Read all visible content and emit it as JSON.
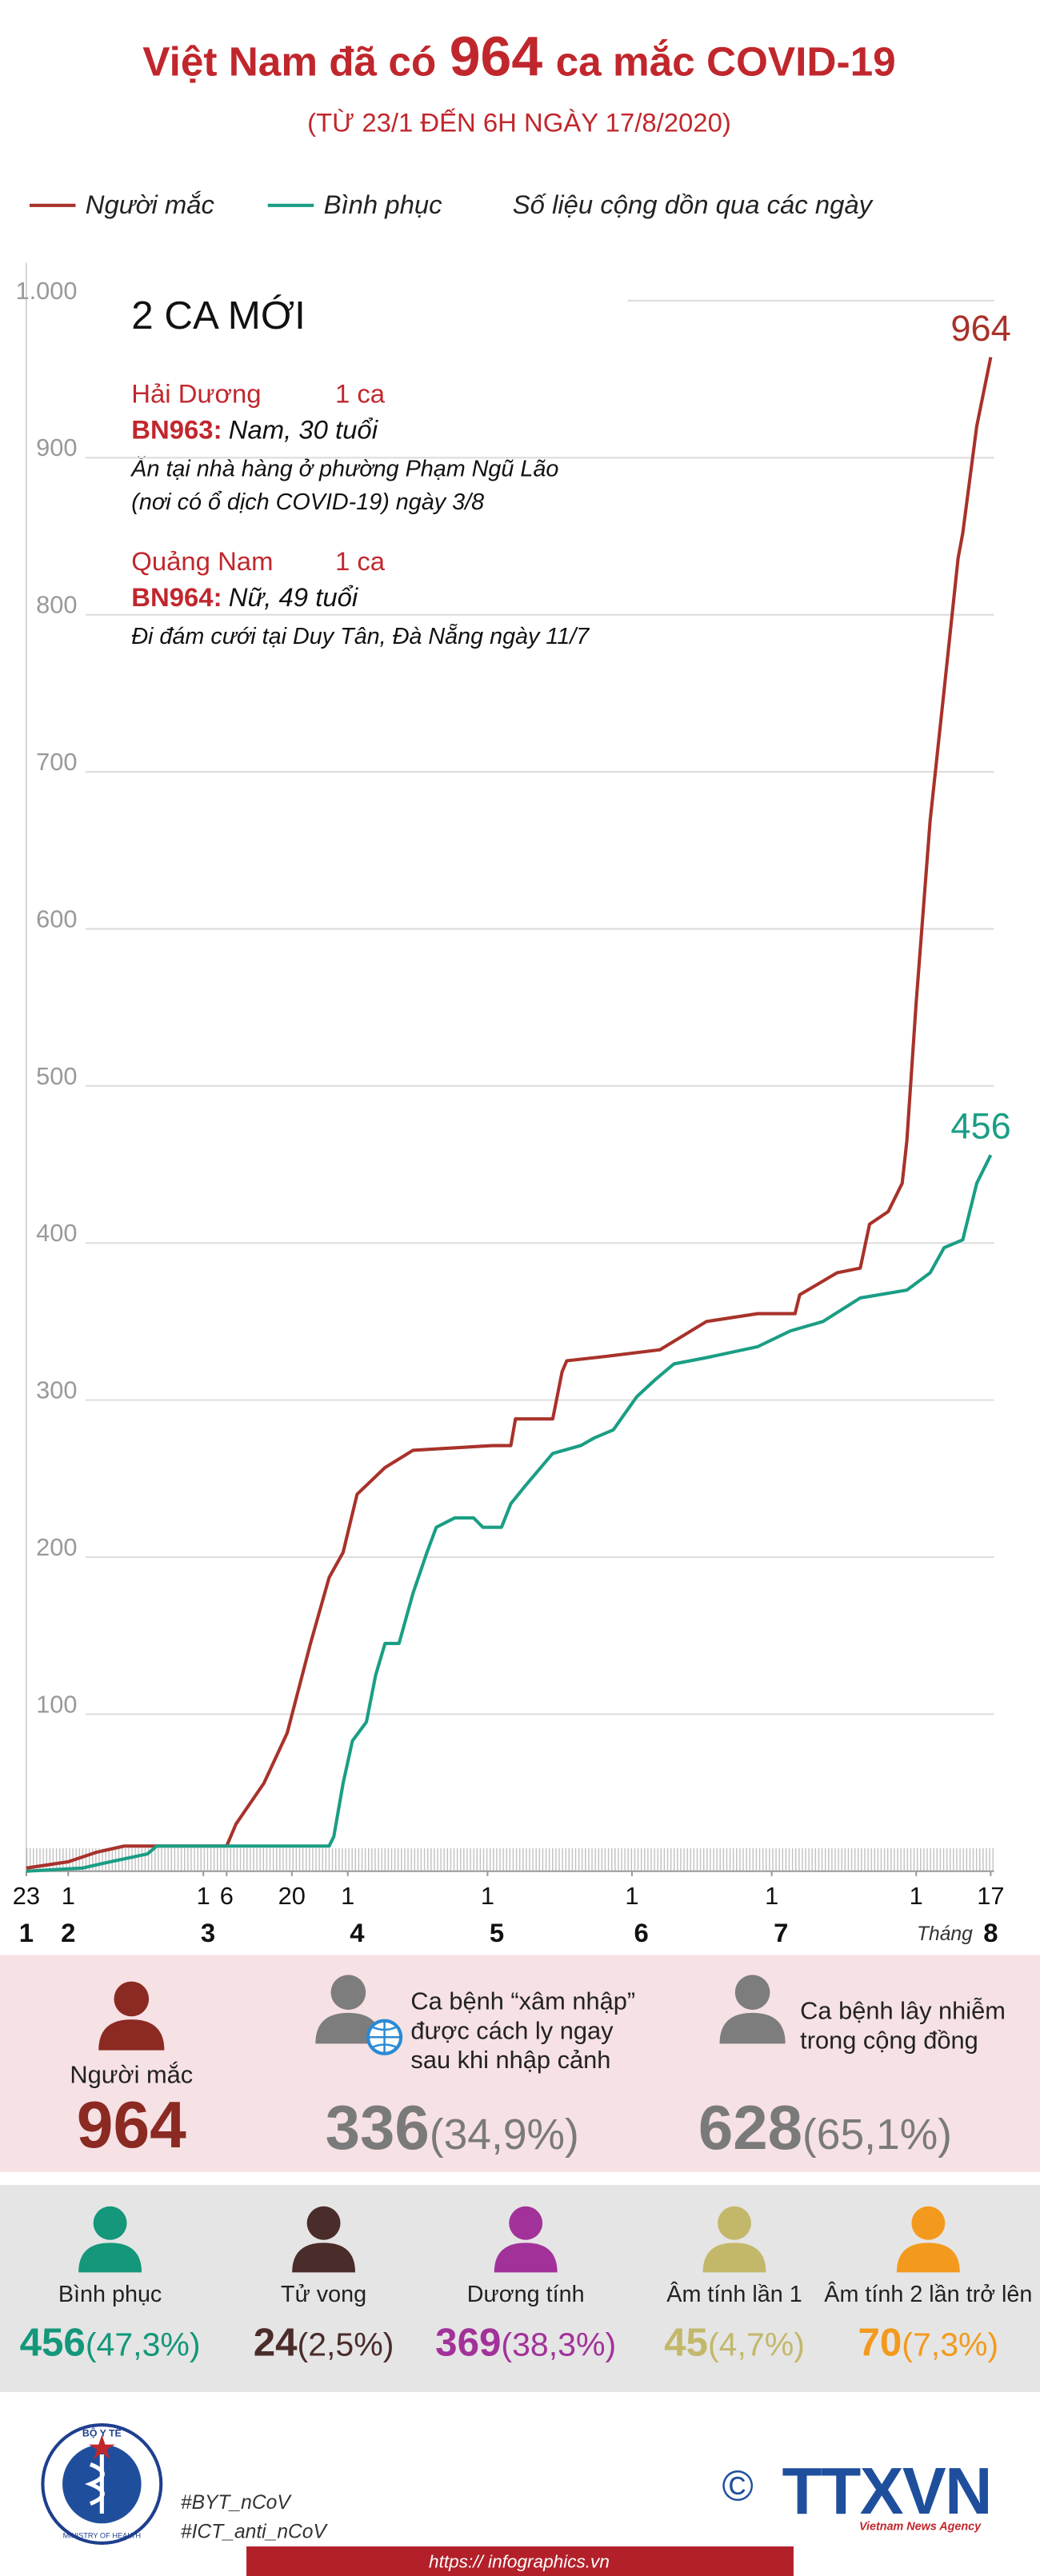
{
  "header": {
    "title_start": "Việt Nam đã có",
    "title_number": "964",
    "title_end": "ca mắc COVID-19",
    "subtitle": "(TỪ 23/1 ĐẾN 6H NGÀY 17/8/2020)"
  },
  "chart_data": {
    "type": "line",
    "note": "Số liệu cộng dồn qua các ngày",
    "xlabel": "Tháng",
    "xlim": [
      "23/1",
      "17/8"
    ],
    "xticks": [
      {
        "value": "23/1",
        "label": "23"
      },
      {
        "value": "1/2",
        "label": "1"
      },
      {
        "value": "1/3",
        "label": "1"
      },
      {
        "value": "6/3",
        "label": "6"
      },
      {
        "value": "20/3",
        "label": "20"
      },
      {
        "value": "1/4",
        "label": "1"
      },
      {
        "value": "1/5",
        "label": "1"
      },
      {
        "value": "1/6",
        "label": "1"
      },
      {
        "value": "1/7",
        "label": "1"
      },
      {
        "value": "1/8",
        "label": "1"
      },
      {
        "value": "17/8",
        "label": "17"
      }
    ],
    "month_ticks": [
      {
        "value": "23/1",
        "label": "1"
      },
      {
        "value": "1/2",
        "label": "2"
      },
      {
        "value": "2/3",
        "label": "3"
      },
      {
        "value": "3/4",
        "label": "4"
      },
      {
        "value": "3/5",
        "label": "5"
      },
      {
        "value": "3/6",
        "label": "6"
      },
      {
        "value": "3/7",
        "label": "7"
      },
      {
        "value": "17/8",
        "label": "8"
      }
    ],
    "ylim": [
      0,
      1000
    ],
    "yticks": [
      100,
      200,
      300,
      400,
      500,
      600,
      700,
      800,
      900,
      {
        "value": 1000,
        "label": "1.000"
      }
    ],
    "grid": true,
    "series": [
      {
        "name": "Người mắc",
        "color": "#a8322a",
        "x": [
          "23/1",
          "1/2",
          "7/2",
          "13/2",
          "6/3",
          "8/3",
          "14/3",
          "19/3",
          "24/3",
          "28/3",
          "31/3",
          "3/4",
          "9/4",
          "15/4",
          "2/5",
          "6/5",
          "7/5",
          "15/5",
          "17/5",
          "18/5",
          "27/5",
          "7/6",
          "17/6",
          "28/6",
          "6/7",
          "7/7",
          "15/7",
          "20/7",
          "22/7",
          "26/7",
          "29/7",
          "30/7",
          "1/8",
          "4/8",
          "7/8",
          "10/8",
          "11/8",
          "14/8",
          "17/8"
        ],
        "values": [
          2,
          6,
          12,
          16,
          16,
          30,
          56,
          88,
          145,
          187,
          203,
          240,
          257,
          268,
          271,
          271,
          288,
          288,
          318,
          325,
          328,
          332,
          350,
          355,
          355,
          367,
          381,
          384,
          412,
          420,
          438,
          465,
          553,
          669,
          752,
          836,
          852,
          920,
          964
        ]
      },
      {
        "name": "Bình phục",
        "color": "#1a9e84",
        "x": [
          "23/1",
          "4/2",
          "10/2",
          "18/2",
          "20/2",
          "28/3",
          "29/3",
          "31/3",
          "2/4",
          "5/4",
          "7/4",
          "9/4",
          "12/4",
          "15/4",
          "18/4",
          "20/4",
          "24/4",
          "28/4",
          "30/4",
          "4/5",
          "6/5",
          "9/5",
          "15/5",
          "21/5",
          "24/5",
          "28/5",
          "2/6",
          "6/6",
          "10/6",
          "17/6",
          "28/6",
          "5/7",
          "12/7",
          "20/7",
          "30/7",
          "4/8",
          "7/8",
          "11/8",
          "14/8",
          "17/8"
        ],
        "values": [
          0,
          2,
          6,
          11,
          16,
          16,
          22,
          56,
          83,
          95,
          125,
          145,
          145,
          177,
          203,
          219,
          225,
          225,
          219,
          219,
          234,
          245,
          266,
          271,
          276,
          281,
          302,
          313,
          323,
          327,
          334,
          344,
          350,
          365,
          370,
          381,
          397,
          402,
          438,
          456
        ]
      }
    ]
  },
  "new_cases": {
    "title": "2 CA MỚI",
    "cases": [
      {
        "province": "Hải Dương",
        "count": "1 ca",
        "id": "BN963:",
        "desc": "Nam, 30 tuổi",
        "note_lines": [
          "Ăn tại nhà hàng ở phường Phạm Ngũ Lão",
          "(nơi có ổ dịch COVID-19) ngày 3/8"
        ]
      },
      {
        "province": "Quảng Nam",
        "count": "1 ca",
        "id": "BN964:",
        "desc": "Nữ, 49 tuổi",
        "note_lines": [
          "Đi đám cưới tại Duy Tân, Đà Nẵng ngày 11/7"
        ]
      }
    ]
  },
  "cases_panel": {
    "items": [
      {
        "label_lines": [
          "Người mắc"
        ],
        "value": "964",
        "percent": ""
      },
      {
        "label_lines": [
          "Ca bệnh “xâm nhập”",
          "được cách ly ngay",
          "sau khi nhập cảnh"
        ],
        "value": "336",
        "percent": "(34,9%)"
      },
      {
        "label_lines": [
          "Ca bệnh lây nhiễm",
          "trong cộng đồng"
        ],
        "value": "628",
        "percent": "(65,1%)"
      }
    ]
  },
  "status_panel": {
    "items": [
      {
        "label": "Bình phục",
        "value": "456",
        "percent": "(47,3%)",
        "color": "#14977a"
      },
      {
        "label": "Tử vong",
        "value": "24",
        "percent": "(2,5%)",
        "color": "#4a2c2a"
      },
      {
        "label": "Dương tính",
        "value": "369",
        "percent": "(38,3%)",
        "color": "#a2329a"
      },
      {
        "label": "Âm tính lần 1",
        "value": "45",
        "percent": "(4,7%)",
        "color": "#c3b86a"
      },
      {
        "label": "Âm tính 2 lần trở lên",
        "value": "70",
        "percent": "(7,3%)",
        "color": "#f39a1e"
      }
    ]
  },
  "footer": {
    "logo_top": "BỘ Y TẾ",
    "logo_bottom": "MINISTRY OF HEALTH",
    "hashtags": [
      "#BYT_nCoV",
      "#ICT_anti_nCoV"
    ],
    "copyright": "©",
    "agency": "TTXVN",
    "agency_en": "Vietnam News Agency",
    "url": "https:// infographics.vn"
  }
}
